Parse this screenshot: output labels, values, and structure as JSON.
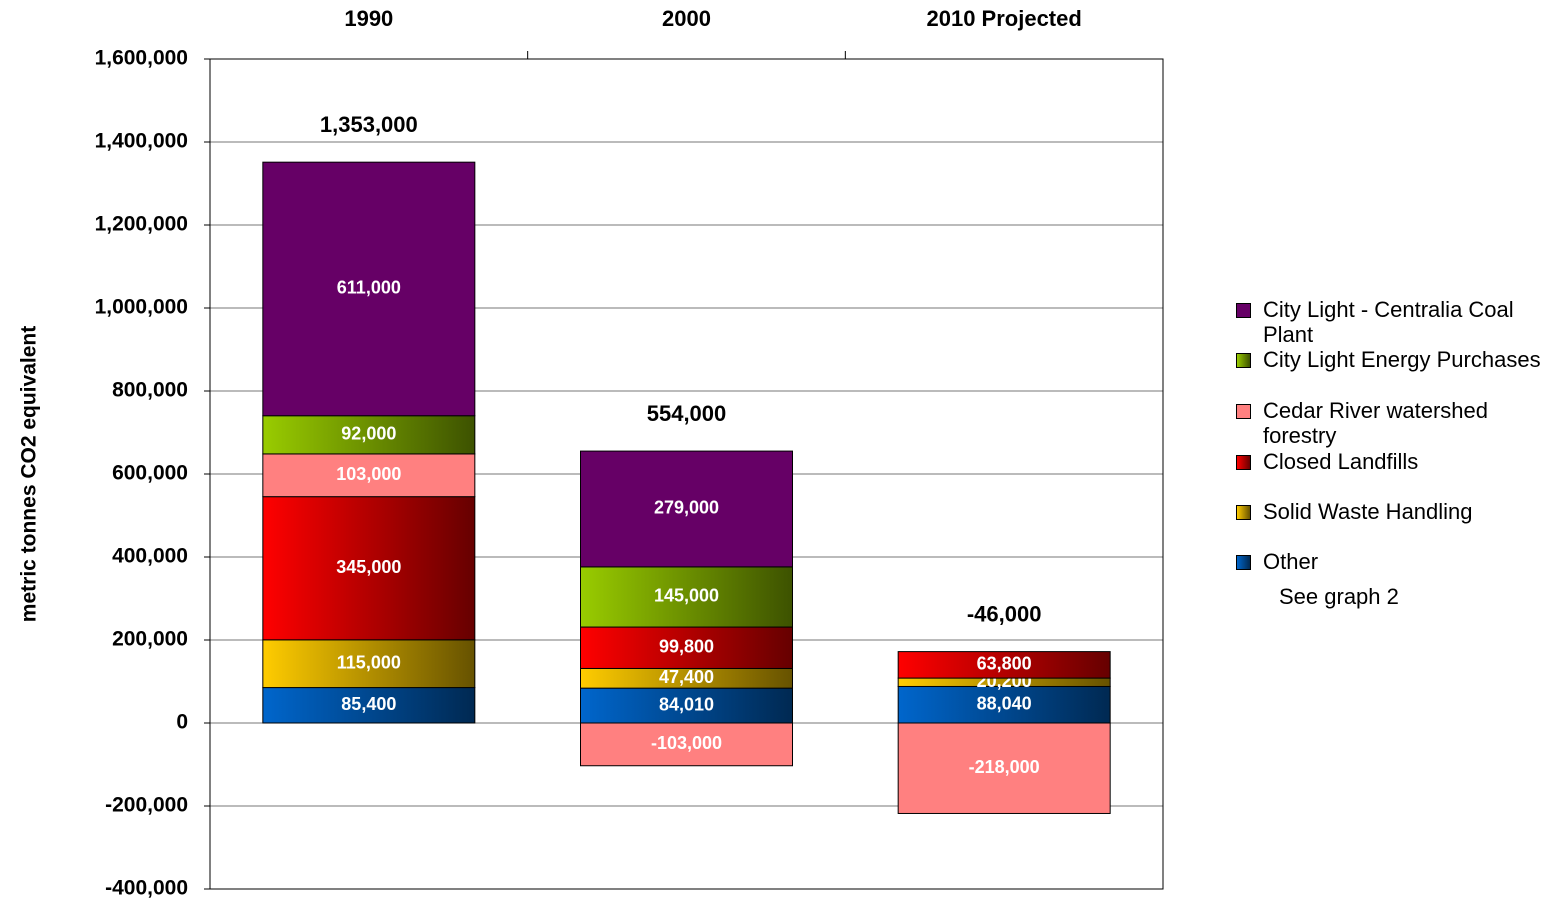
{
  "chart_data": {
    "type": "stacked_bar",
    "categories": [
      "1990",
      "2000",
      "2010 Projected"
    ],
    "y_axis_label": "metric tonnes CO2 equivalent",
    "ylim": [
      -400000,
      1600000
    ],
    "yticks": [
      {
        "value": -400000,
        "label": "-400,000"
      },
      {
        "value": -200000,
        "label": "-200,000"
      },
      0,
      {
        "value": 200000,
        "label": "200,000"
      },
      {
        "value": 400000,
        "label": "400,000"
      },
      {
        "value": 600000,
        "label": "600,000"
      },
      {
        "value": 800000,
        "label": "800,000"
      },
      {
        "value": 1000000,
        "label": "1,000,000"
      },
      {
        "value": 1200000,
        "label": "1,200,000"
      },
      {
        "value": 1400000,
        "label": "1,400,000"
      },
      {
        "value": 1600000,
        "label": "1,600,000"
      }
    ],
    "grid": true,
    "series": [
      {
        "name": "Other",
        "color": "#0066cc",
        "gradient": true,
        "values": [
          85400,
          84010,
          88040
        ],
        "value_labels": [
          "85,400",
          "84,010",
          "88,040"
        ]
      },
      {
        "name": "Solid Waste Handling",
        "color": "#ffcc00",
        "gradient": true,
        "values": [
          115000,
          47400,
          20200
        ],
        "value_labels": [
          "115,000",
          "47,400",
          "20,200"
        ]
      },
      {
        "name": "Closed Landfills",
        "color": "#ff0000",
        "gradient": true,
        "values": [
          345000,
          99800,
          63800
        ],
        "value_labels": [
          "345,000",
          "99,800",
          "63,800"
        ]
      },
      {
        "name": "Cedar River watershed forestry",
        "color": "#ff8080",
        "gradient": false,
        "values": [
          103000,
          -103000,
          -218000
        ],
        "value_labels": [
          "103,000",
          "-103,000",
          "-218,000"
        ]
      },
      {
        "name": "City Light Energy Purchases",
        "color": "#99cc00",
        "gradient": true,
        "values": [
          92000,
          145000,
          null
        ],
        "value_labels": [
          "92,000",
          "145,000",
          null
        ]
      },
      {
        "name": "City Light - Centralia Coal Plant",
        "color": "#660066",
        "gradient": false,
        "values": [
          611000,
          279000,
          null
        ],
        "value_labels": [
          "611,000",
          "279,000",
          null
        ]
      }
    ],
    "totals": {
      "values": [
        1353000,
        554000,
        -46000
      ],
      "value_labels": [
        "1,353,000",
        "554,000",
        "-46,000"
      ]
    },
    "annotation": "See graph 2"
  }
}
